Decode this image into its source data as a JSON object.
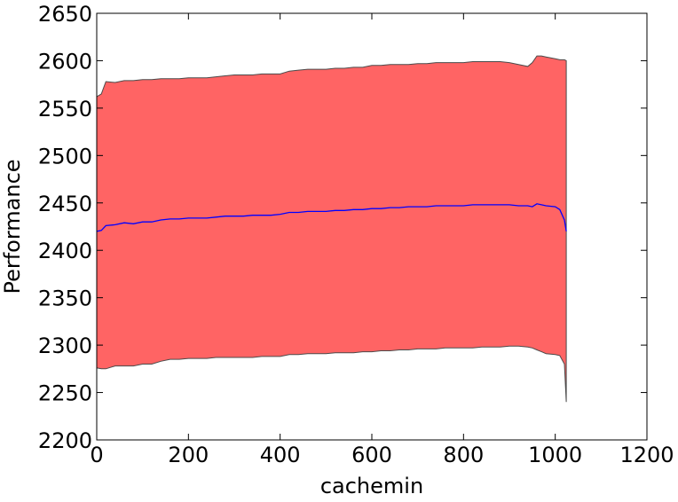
{
  "chart_data": {
    "type": "area",
    "title": "",
    "xlabel": "cachemin",
    "ylabel": "Performance",
    "xlim": [
      0,
      1200
    ],
    "ylim": [
      2200,
      2650
    ],
    "xticks": [
      0,
      200,
      400,
      600,
      800,
      1000,
      1200
    ],
    "yticks": [
      2200,
      2250,
      2300,
      2350,
      2400,
      2450,
      2500,
      2550,
      2600,
      2650
    ],
    "grid": false,
    "legend": "none",
    "colors": {
      "band_fill": "#ff6464",
      "band_edge": "#4a4a4a",
      "mean_line": "#0000ff",
      "frame": "#000000"
    },
    "x": [
      0,
      10,
      20,
      40,
      60,
      80,
      100,
      120,
      140,
      160,
      180,
      200,
      220,
      240,
      260,
      280,
      300,
      320,
      340,
      360,
      380,
      400,
      420,
      440,
      460,
      480,
      500,
      520,
      540,
      560,
      580,
      600,
      620,
      640,
      660,
      680,
      700,
      720,
      740,
      760,
      780,
      800,
      820,
      840,
      860,
      880,
      900,
      920,
      940,
      950,
      960,
      970,
      980,
      1000,
      1010,
      1020,
      1024
    ],
    "series": [
      {
        "role": "mean",
        "values": [
          2420,
          2421,
          2426,
          2427,
          2429,
          2428,
          2430,
          2430,
          2432,
          2433,
          2433,
          2434,
          2434,
          2434,
          2435,
          2436,
          2436,
          2436,
          2437,
          2437,
          2437,
          2438,
          2440,
          2440,
          2441,
          2441,
          2441,
          2442,
          2442,
          2443,
          2443,
          2444,
          2444,
          2445,
          2445,
          2446,
          2446,
          2446,
          2447,
          2447,
          2447,
          2447,
          2448,
          2448,
          2448,
          2448,
          2448,
          2447,
          2447,
          2446,
          2449,
          2448,
          2447,
          2446,
          2443,
          2432,
          2420
        ]
      },
      {
        "role": "upper",
        "values": [
          2562,
          2565,
          2578,
          2577,
          2579,
          2579,
          2580,
          2580,
          2581,
          2581,
          2581,
          2582,
          2582,
          2582,
          2583,
          2584,
          2585,
          2585,
          2585,
          2586,
          2586,
          2586,
          2589,
          2590,
          2591,
          2591,
          2591,
          2592,
          2592,
          2593,
          2593,
          2595,
          2595,
          2596,
          2596,
          2596,
          2597,
          2597,
          2598,
          2598,
          2598,
          2598,
          2599,
          2599,
          2599,
          2599,
          2598,
          2596,
          2594,
          2598,
          2605,
          2605,
          2604,
          2602,
          2601,
          2601,
          2600
        ]
      },
      {
        "role": "lower",
        "values": [
          2276,
          2275,
          2275,
          2278,
          2278,
          2278,
          2280,
          2280,
          2283,
          2285,
          2285,
          2286,
          2286,
          2286,
          2287,
          2287,
          2287,
          2287,
          2287,
          2288,
          2288,
          2288,
          2290,
          2290,
          2291,
          2291,
          2291,
          2292,
          2292,
          2292,
          2293,
          2293,
          2294,
          2294,
          2295,
          2295,
          2296,
          2296,
          2296,
          2297,
          2297,
          2297,
          2297,
          2298,
          2298,
          2298,
          2299,
          2299,
          2298,
          2297,
          2295,
          2293,
          2291,
          2290,
          2289,
          2280,
          2240
        ]
      }
    ]
  }
}
